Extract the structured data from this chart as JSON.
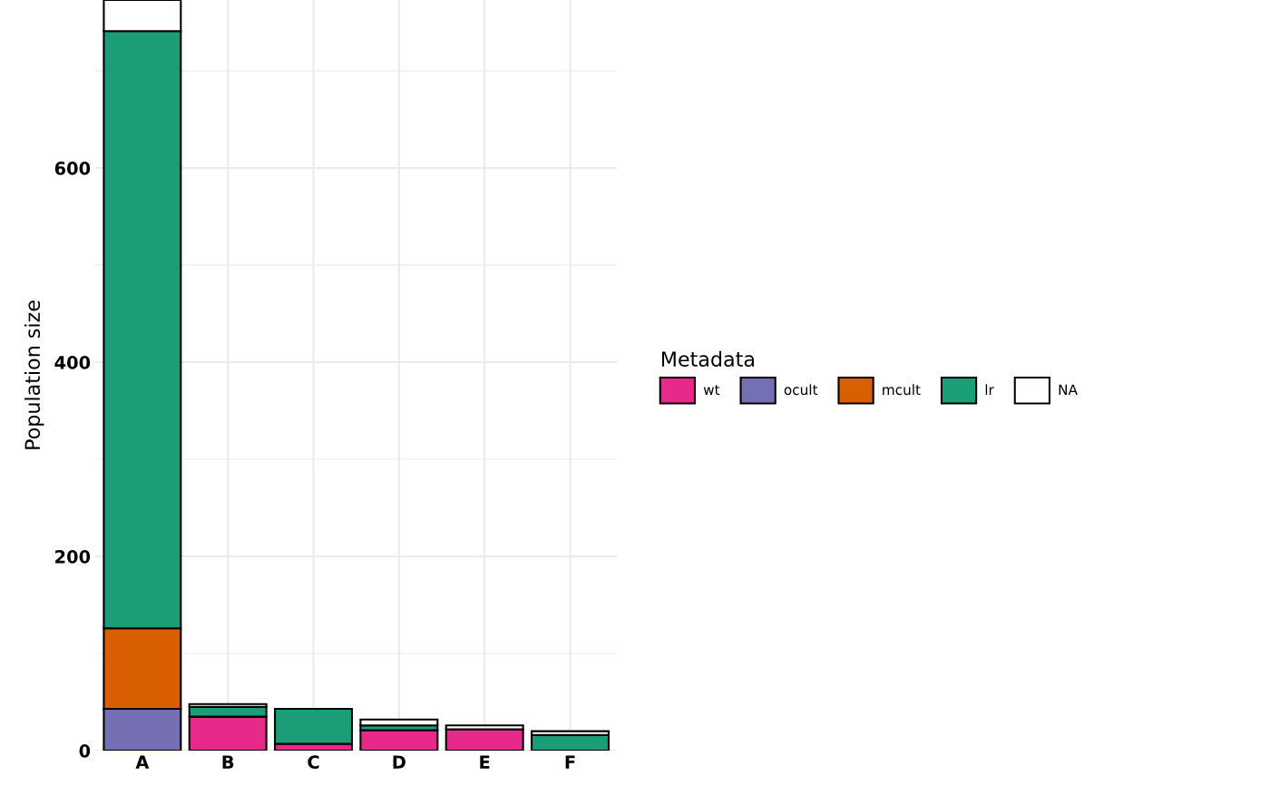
{
  "chart_data": {
    "type": "bar",
    "stacked": true,
    "ylabel": "Population size",
    "legend_title": "Metadata",
    "legend": "right",
    "grid": true,
    "categories": [
      "A",
      "B",
      "C",
      "D",
      "E",
      "F"
    ],
    "ylim": [
      0,
      773
    ],
    "yticks": [
      0,
      200,
      400,
      600
    ],
    "series": [
      {
        "name": "wt",
        "color": "#e7298a",
        "values": [
          0,
          35,
          7,
          21,
          22,
          0
        ]
      },
      {
        "name": "ocult",
        "color": "#7570b3",
        "values": [
          43,
          0,
          0,
          0,
          0,
          0
        ]
      },
      {
        "name": "mcult",
        "color": "#d95f02",
        "values": [
          83,
          0,
          0,
          0,
          0,
          0
        ]
      },
      {
        "name": "lr",
        "color": "#1b9e77",
        "values": [
          615,
          10,
          36,
          5,
          0,
          16
        ]
      },
      {
        "name": "NA",
        "color": "#ffffff",
        "values": [
          32,
          3,
          0,
          6,
          4,
          4
        ]
      }
    ]
  }
}
